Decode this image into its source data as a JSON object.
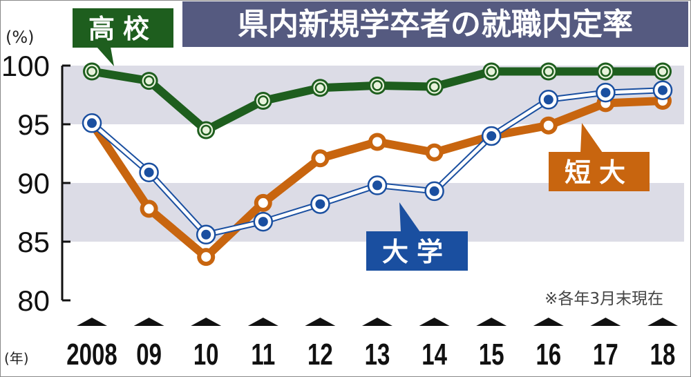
{
  "chart_data": {
    "type": "line",
    "title": "県内新規学卒者の就職内定率",
    "ylabel": "(%)",
    "xlabel": "(年)",
    "ylim": [
      80,
      100
    ],
    "yticks": [
      "80",
      "85",
      "90",
      "95",
      "100"
    ],
    "categories": [
      "2008",
      "09",
      "10",
      "11",
      "12",
      "13",
      "14",
      "15",
      "16",
      "17",
      "18"
    ],
    "note": "※各年3月末現在",
    "series": [
      {
        "name": "高校",
        "color": "#1e5e1e",
        "values": [
          99.5,
          98.7,
          94.5,
          97.0,
          98.1,
          98.3,
          98.2,
          99.5,
          99.5,
          99.5,
          99.5
        ]
      },
      {
        "name": "短大",
        "color": "#c8650f",
        "values": [
          95.1,
          87.8,
          83.7,
          88.3,
          92.1,
          93.5,
          92.6,
          94.0,
          94.9,
          96.8,
          97.0
        ]
      },
      {
        "name": "大学",
        "color": "#1a4fa0",
        "values": [
          95.1,
          90.9,
          85.6,
          86.7,
          88.2,
          89.8,
          89.3,
          94.0,
          97.1,
          97.7,
          97.9
        ]
      }
    ],
    "grid": "alternating bands",
    "colors": {
      "title_bg": "#555a80",
      "band": "#dcdce6"
    }
  }
}
